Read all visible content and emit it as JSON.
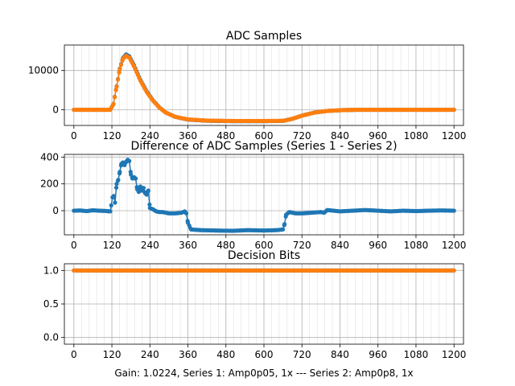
{
  "footer": "Gain: 1.0224, Series 1: Amp0p05, 1x --- Series 2: Amp0p8, 1x",
  "colors": {
    "series1": "#1f77b4",
    "series2": "#ff7f0e",
    "grid": "#b0b0b0"
  },
  "chart_data": [
    {
      "type": "scatter",
      "title": "ADC Samples",
      "xlabel": "",
      "ylabel": "",
      "xlim": [
        -30,
        1230
      ],
      "ylim": [
        -4000,
        16500
      ],
      "xticks": [
        0,
        120,
        240,
        360,
        480,
        600,
        720,
        840,
        960,
        1080,
        1200
      ],
      "yticks": [
        0,
        10000
      ],
      "grid": true,
      "series": [
        {
          "color": "#1f77b4",
          "points": [
            [
              0,
              0
            ],
            [
              115,
              0
            ],
            [
              125,
              1500
            ],
            [
              135,
              6000
            ],
            [
              145,
              10500
            ],
            [
              155,
              13200
            ],
            [
              165,
              14100
            ],
            [
              175,
              13600
            ],
            [
              190,
              11300
            ],
            [
              210,
              7600
            ],
            [
              230,
              4700
            ],
            [
              250,
              2400
            ],
            [
              270,
              600
            ],
            [
              290,
              -700
            ],
            [
              320,
              -1800
            ],
            [
              360,
              -2500
            ],
            [
              420,
              -2800
            ],
            [
              500,
              -2900
            ],
            [
              600,
              -2900
            ],
            [
              660,
              -2850
            ],
            [
              690,
              -2300
            ],
            [
              720,
              -1500
            ],
            [
              760,
              -700
            ],
            [
              800,
              -300
            ],
            [
              850,
              -80
            ],
            [
              900,
              0
            ],
            [
              1200,
              0
            ]
          ]
        },
        {
          "color": "#ff7f0e",
          "points": [
            [
              0,
              0
            ],
            [
              115,
              0
            ],
            [
              125,
              1450
            ],
            [
              135,
              5900
            ],
            [
              145,
              10400
            ],
            [
              155,
              13000
            ],
            [
              165,
              13750
            ],
            [
              175,
              13300
            ],
            [
              190,
              11050
            ],
            [
              210,
              7400
            ],
            [
              230,
              4500
            ],
            [
              250,
              2300
            ],
            [
              270,
              550
            ],
            [
              290,
              -700
            ],
            [
              320,
              -1800
            ],
            [
              360,
              -2450
            ],
            [
              420,
              -2760
            ],
            [
              500,
              -2860
            ],
            [
              600,
              -2860
            ],
            [
              660,
              -2820
            ],
            [
              690,
              -2300
            ],
            [
              720,
              -1500
            ],
            [
              760,
              -700
            ],
            [
              800,
              -300
            ],
            [
              850,
              -80
            ],
            [
              900,
              0
            ],
            [
              1200,
              0
            ]
          ]
        }
      ]
    },
    {
      "type": "scatter",
      "title": "Difference of ADC Samples (Series 1 - Series 2)",
      "xlabel": "",
      "ylabel": "",
      "xlim": [
        -30,
        1230
      ],
      "ylim": [
        -180,
        420
      ],
      "xticks": [
        0,
        120,
        240,
        360,
        480,
        600,
        720,
        840,
        960,
        1080,
        1200
      ],
      "yticks": [
        0,
        200,
        400
      ],
      "grid": true,
      "series": [
        {
          "color": "#1f77b4",
          "points": [
            [
              0,
              0
            ],
            [
              20,
              2
            ],
            [
              40,
              -3
            ],
            [
              60,
              3
            ],
            [
              80,
              0
            ],
            [
              100,
              -2
            ],
            [
              115,
              -5
            ],
            [
              118,
              40
            ],
            [
              122,
              100
            ],
            [
              126,
              110
            ],
            [
              130,
              60
            ],
            [
              135,
              200
            ],
            [
              140,
              230
            ],
            [
              145,
              290
            ],
            [
              150,
              350
            ],
            [
              155,
              360
            ],
            [
              160,
              340
            ],
            [
              165,
              365
            ],
            [
              170,
              380
            ],
            [
              175,
              370
            ],
            [
              180,
              270
            ],
            [
              185,
              240
            ],
            [
              190,
              250
            ],
            [
              195,
              240
            ],
            [
              200,
              160
            ],
            [
              205,
              140
            ],
            [
              210,
              180
            ],
            [
              215,
              150
            ],
            [
              220,
              170
            ],
            [
              225,
              130
            ],
            [
              230,
              120
            ],
            [
              235,
              150
            ],
            [
              240,
              20
            ],
            [
              250,
              10
            ],
            [
              260,
              -5
            ],
            [
              270,
              -10
            ],
            [
              280,
              -10
            ],
            [
              300,
              -20
            ],
            [
              320,
              -20
            ],
            [
              340,
              -15
            ],
            [
              350,
              -5
            ],
            [
              355,
              -20
            ],
            [
              360,
              -90
            ],
            [
              370,
              -140
            ],
            [
              400,
              -145
            ],
            [
              450,
              -148
            ],
            [
              500,
              -150
            ],
            [
              550,
              -145
            ],
            [
              600,
              -148
            ],
            [
              640,
              -145
            ],
            [
              660,
              -140
            ],
            [
              665,
              -100
            ],
            [
              670,
              -30
            ],
            [
              680,
              -10
            ],
            [
              700,
              -20
            ],
            [
              720,
              -20
            ],
            [
              750,
              -15
            ],
            [
              780,
              -10
            ],
            [
              790,
              -15
            ],
            [
              800,
              5
            ],
            [
              840,
              -5
            ],
            [
              880,
              0
            ],
            [
              920,
              5
            ],
            [
              960,
              0
            ],
            [
              1000,
              -5
            ],
            [
              1040,
              0
            ],
            [
              1080,
              -3
            ],
            [
              1120,
              0
            ],
            [
              1160,
              2
            ],
            [
              1200,
              0
            ]
          ]
        }
      ]
    },
    {
      "type": "scatter",
      "title": "Decision Bits",
      "xlabel": "",
      "ylabel": "",
      "xlim": [
        -30,
        1230
      ],
      "ylim": [
        -0.1,
        1.1
      ],
      "xticks": [
        0,
        120,
        240,
        360,
        480,
        600,
        720,
        840,
        960,
        1080,
        1200
      ],
      "yticks": [
        0.0,
        0.5,
        1.0
      ],
      "grid": true,
      "series": [
        {
          "color": "#1f77b4",
          "points": [
            [
              0,
              1
            ],
            [
              1200,
              1
            ]
          ]
        },
        {
          "color": "#ff7f0e",
          "points": [
            [
              0,
              1
            ],
            [
              1200,
              1
            ]
          ]
        }
      ]
    }
  ]
}
